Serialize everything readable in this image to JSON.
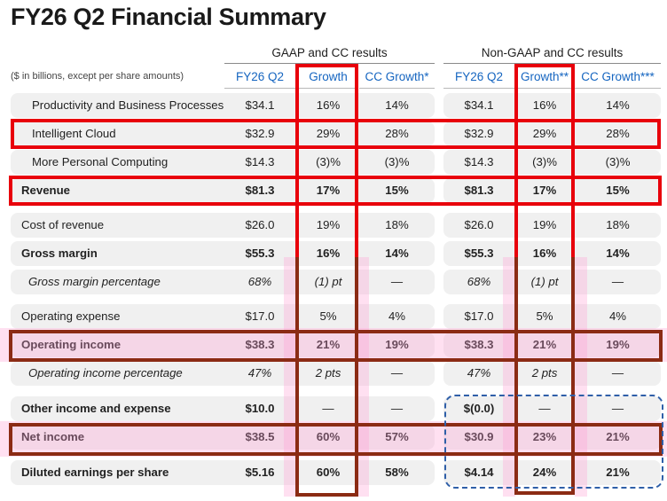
{
  "title": "FY26 Q2 Financial Summary",
  "note": "($ in billions, except per share amounts)",
  "group_headers": [
    "GAAP and CC results",
    "Non-GAAP and CC results"
  ],
  "column_headers": [
    "FY26 Q2",
    "Growth",
    "CC Growth*",
    "FY26 Q2",
    "Growth**",
    "CC Growth***"
  ],
  "rows": [
    {
      "label": "Productivity and Business Processes",
      "cells": [
        "$34.1",
        "16%",
        "14%",
        "$34.1",
        "16%",
        "14%"
      ]
    },
    {
      "label": "Intelligent Cloud",
      "cells": [
        "$32.9",
        "29%",
        "28%",
        "$32.9",
        "29%",
        "28%"
      ]
    },
    {
      "label": "More Personal Computing",
      "cells": [
        "$14.3",
        "(3)%",
        "(3)%",
        "$14.3",
        "(3)%",
        "(3)%"
      ]
    },
    {
      "label": "Revenue",
      "cells": [
        "$81.3",
        "17%",
        "15%",
        "$81.3",
        "17%",
        "15%"
      ]
    },
    {
      "label": "Cost of revenue",
      "cells": [
        "$26.0",
        "19%",
        "18%",
        "$26.0",
        "19%",
        "18%"
      ]
    },
    {
      "label": "Gross margin",
      "cells": [
        "$55.3",
        "16%",
        "14%",
        "$55.3",
        "16%",
        "14%"
      ]
    },
    {
      "label": "Gross margin percentage",
      "cells": [
        "68%",
        "(1) pt",
        "—",
        "68%",
        "(1) pt",
        "—"
      ]
    },
    {
      "label": "Operating expense",
      "cells": [
        "$17.0",
        "5%",
        "4%",
        "$17.0",
        "5%",
        "4%"
      ]
    },
    {
      "label": "Operating income",
      "cells": [
        "$38.3",
        "21%",
        "19%",
        "$38.3",
        "21%",
        "19%"
      ]
    },
    {
      "label": "Operating income percentage",
      "cells": [
        "47%",
        "2 pts",
        "—",
        "47%",
        "2 pts",
        "—"
      ]
    },
    {
      "label": "Other income and expense",
      "cells": [
        "$10.0",
        "—",
        "—",
        "$(0.0)",
        "—",
        "—"
      ]
    },
    {
      "label": "Net income",
      "cells": [
        "$38.5",
        "60%",
        "57%",
        "$30.9",
        "23%",
        "21%"
      ]
    },
    {
      "label": "Diluted earnings per share",
      "cells": [
        "$5.16",
        "60%",
        "58%",
        "$4.14",
        "24%",
        "21%"
      ]
    }
  ],
  "colors": {
    "header_blue": "#1565c0",
    "cell_fill": "#f0f0f0",
    "highlight_red": "#e8000b",
    "highlight_brown": "#8b2b14",
    "dashed_blue": "#2f5fa8",
    "highlight_pink": "#ffa0d2"
  }
}
